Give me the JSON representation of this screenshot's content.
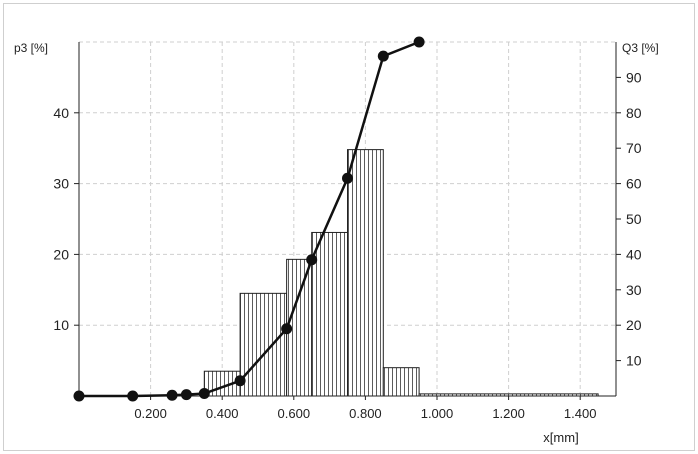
{
  "chart_data": {
    "type": "bar",
    "xlabel": "x[mm]",
    "ylabel_left": "p3 [%]",
    "ylabel_right": "Q3 [%]",
    "xlim": [
      0,
      1.5
    ],
    "ylim_left": [
      0,
      50
    ],
    "ylim_right": [
      0,
      100
    ],
    "x_ticks": [
      0.2,
      0.4,
      0.6,
      0.8,
      1.0,
      1.2,
      1.4
    ],
    "x_tick_labels": [
      "0.200",
      "0.400",
      "0.600",
      "0.800",
      "1.000",
      "1.200",
      "1.400"
    ],
    "y_left_ticks": [
      10,
      20,
      30,
      40
    ],
    "y_left_tick_labels": [
      "10",
      "20",
      "30",
      "40"
    ],
    "y_right_ticks": [
      10,
      20,
      30,
      40,
      50,
      60,
      70,
      80,
      90
    ],
    "y_right_tick_labels": [
      "10",
      "20",
      "30",
      "40",
      "50",
      "60",
      "70",
      "80",
      "90"
    ],
    "grid": true,
    "histogram": {
      "name": "p3",
      "bins": [
        {
          "x0": 0.35,
          "x1": 0.45,
          "value": 3.5
        },
        {
          "x0": 0.45,
          "x1": 0.58,
          "value": 14.5
        },
        {
          "x0": 0.58,
          "x1": 0.65,
          "value": 19.3
        },
        {
          "x0": 0.65,
          "x1": 0.75,
          "value": 23.1
        },
        {
          "x0": 0.75,
          "x1": 0.85,
          "value": 34.8
        },
        {
          "x0": 0.85,
          "x1": 0.95,
          "value": 4.0
        },
        {
          "x0": 0.95,
          "x1": 1.45,
          "value": 0.3
        }
      ]
    },
    "cumulative": {
      "name": "Q3",
      "points": [
        {
          "x": 0.0,
          "y": 0
        },
        {
          "x": 0.15,
          "y": 0
        },
        {
          "x": 0.26,
          "y": 0.2
        },
        {
          "x": 0.3,
          "y": 0.4
        },
        {
          "x": 0.35,
          "y": 0.7
        },
        {
          "x": 0.45,
          "y": 4.3
        },
        {
          "x": 0.58,
          "y": 19
        },
        {
          "x": 0.65,
          "y": 38.5
        },
        {
          "x": 0.75,
          "y": 61.5
        },
        {
          "x": 0.85,
          "y": 96
        },
        {
          "x": 0.95,
          "y": 100
        }
      ]
    }
  }
}
